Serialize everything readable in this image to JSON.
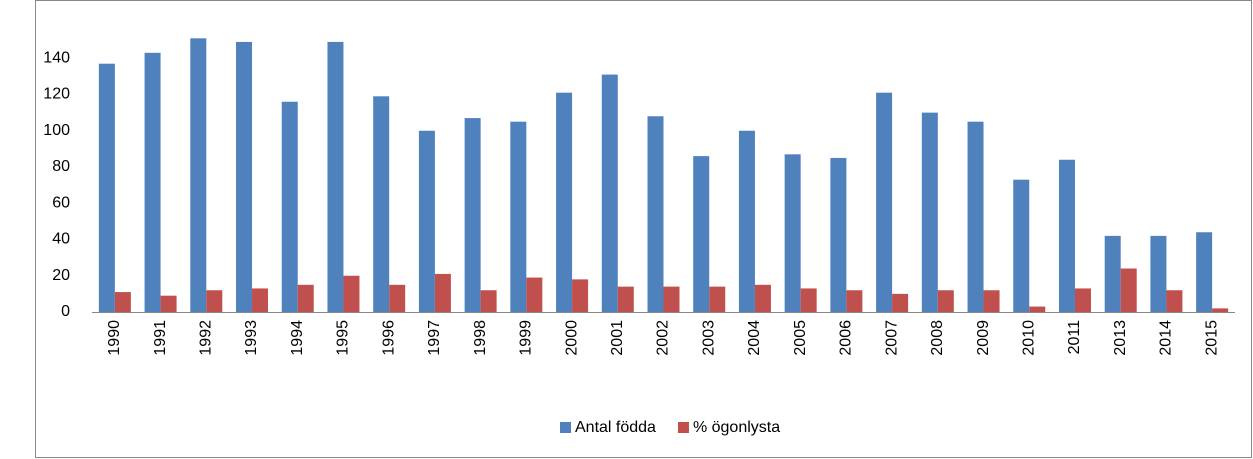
{
  "chart_data": {
    "type": "bar",
    "categories": [
      "1990",
      "1991",
      "1992",
      "1993",
      "1994",
      "1995",
      "1996",
      "1997",
      "1998",
      "1999",
      "2000",
      "2001",
      "2002",
      "2003",
      "2004",
      "2005",
      "2006",
      "2007",
      "2008",
      "2009",
      "2010",
      "2011",
      "2013",
      "2014",
      "2015"
    ],
    "series": [
      {
        "name": "Antal födda",
        "color": "#4f81bd",
        "values": [
          137,
          143,
          151,
          149,
          116,
          149,
          119,
          100,
          107,
          105,
          121,
          131,
          108,
          86,
          100,
          87,
          85,
          121,
          110,
          105,
          73,
          84,
          42,
          42,
          44
        ]
      },
      {
        "name": "% ögonlysta",
        "color": "#c0504d",
        "values": [
          11,
          9,
          12,
          13,
          15,
          20,
          15,
          21,
          12,
          19,
          18,
          14,
          14,
          14,
          15,
          13,
          12,
          10,
          12,
          12,
          3,
          13,
          24,
          12,
          2
        ]
      }
    ],
    "ylim": [
      0,
      160
    ],
    "yticks": [
      0,
      20,
      40,
      60,
      80,
      100,
      120,
      140
    ],
    "grid": false,
    "legend": "bottom"
  }
}
